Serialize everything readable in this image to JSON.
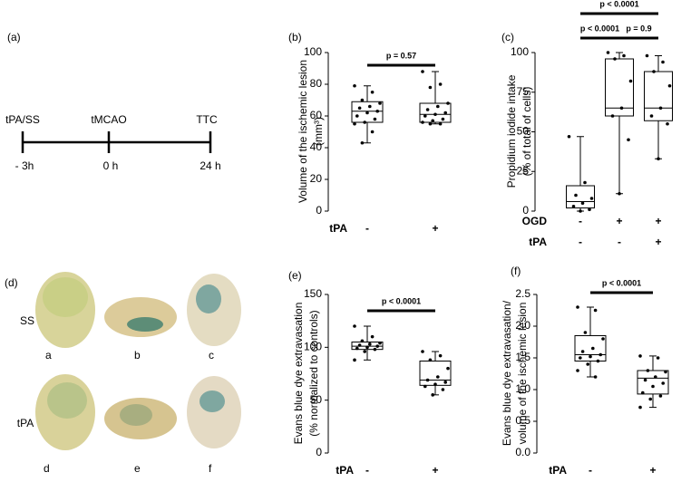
{
  "timeline": {
    "panel": "(a)",
    "events": [
      {
        "top": "tPA/SS",
        "bottom": "- 3h"
      },
      {
        "top": "tMCAO",
        "bottom": "0 h"
      },
      {
        "top": "TTC",
        "bottom": "24 h"
      }
    ]
  },
  "photos": {
    "panel": "(d)",
    "rows": [
      {
        "label": "SS",
        "views": [
          "a",
          "b",
          "c"
        ]
      },
      {
        "label": "tPA",
        "views": [
          "d",
          "e",
          "f"
        ]
      }
    ]
  },
  "chart_data": [
    {
      "type": "box",
      "panel": "(b)",
      "ylabel": [
        "Volume of the ischemic lesion",
        "(mm³)"
      ],
      "ylim": [
        0,
        100
      ],
      "yticks": [
        0,
        20,
        40,
        60,
        80,
        100
      ],
      "factors": [
        {
          "name": "tPA",
          "levels": [
            "-",
            "+"
          ]
        }
      ],
      "comparisons": [
        "p = 0.57"
      ],
      "groups": [
        {
          "min": 43,
          "q1": 56,
          "median": 63,
          "q3": 69,
          "max": 79,
          "points": [
            79,
            75,
            70,
            68,
            66,
            65,
            63,
            62,
            60,
            58,
            56,
            55,
            50,
            43
          ]
        },
        {
          "min": 55,
          "q1": 56,
          "median": 61,
          "q3": 68,
          "max": 88,
          "points": [
            88,
            80,
            78,
            68,
            66,
            64,
            62,
            61,
            60,
            58,
            57,
            56,
            55,
            55
          ]
        }
      ]
    },
    {
      "type": "box",
      "panel": "(c)",
      "ylabel": [
        "Propidium iodide intake",
        "(% of total of cells)"
      ],
      "ylim": [
        0,
        100
      ],
      "yticks": [
        0,
        25,
        50,
        75,
        100
      ],
      "factors": [
        {
          "name": "OGD",
          "levels": [
            "-",
            "+",
            "+"
          ]
        },
        {
          "name": "tPA",
          "levels": [
            "-",
            "-",
            "+"
          ]
        }
      ],
      "comparisons": [
        "p < 0.0001",
        "p = 0.9",
        "p < 0.0001"
      ],
      "groups": [
        {
          "min": 0,
          "q1": 2,
          "median": 6,
          "q3": 16,
          "max": 47,
          "points": [
            47,
            18,
            10,
            8,
            5,
            3,
            1,
            0
          ]
        },
        {
          "min": 11,
          "q1": 60,
          "median": 65,
          "q3": 96,
          "max": 100,
          "points": [
            100,
            98,
            96,
            82,
            65,
            60,
            45,
            11
          ]
        },
        {
          "min": 33,
          "q1": 57,
          "median": 65,
          "q3": 88,
          "max": 98,
          "points": [
            98,
            94,
            88,
            79,
            65,
            60,
            55,
            33
          ]
        }
      ]
    },
    {
      "type": "box",
      "panel": "(e)",
      "ylabel": [
        "Evans blue dye extravasation",
        "(% normalized to controls)"
      ],
      "ylim": [
        0,
        150
      ],
      "yticks": [
        0,
        50,
        100,
        150
      ],
      "factors": [
        {
          "name": "tPA",
          "levels": [
            "-",
            "+"
          ]
        }
      ],
      "comparisons": [
        "p < 0.0001"
      ],
      "groups": [
        {
          "min": 88,
          "q1": 98,
          "median": 101,
          "q3": 105,
          "max": 120,
          "points": [
            120,
            110,
            106,
            104,
            103,
            102,
            101,
            100,
            99,
            98,
            96,
            88
          ]
        },
        {
          "min": 55,
          "q1": 64,
          "median": 69,
          "q3": 87,
          "max": 96,
          "points": [
            96,
            92,
            88,
            80,
            72,
            69,
            67,
            65,
            63,
            60,
            55
          ]
        }
      ]
    },
    {
      "type": "box",
      "panel": "(f)",
      "ylabel": [
        "Evans blue dye extravasation/",
        "volume of the ischemic lesion"
      ],
      "ylim": [
        0,
        2.5
      ],
      "yticks": [
        {
          "value": 0,
          "label": "0.0"
        },
        {
          "value": 0.5,
          "label": "0.5"
        },
        {
          "value": 1,
          "label": "1.0"
        },
        {
          "value": 1.5,
          "label": "1.5"
        },
        {
          "value": 2,
          "label": "2.0"
        },
        {
          "value": 2.5,
          "label": "2.5"
        }
      ],
      "factors": [
        {
          "name": "tPA",
          "levels": [
            "-",
            "+"
          ]
        }
      ],
      "comparisons": [
        "p < 0.0001"
      ],
      "groups": [
        {
          "min": 1.2,
          "q1": 1.45,
          "median": 1.55,
          "q3": 1.85,
          "max": 2.3,
          "points": [
            2.3,
            2.25,
            1.9,
            1.8,
            1.65,
            1.6,
            1.55,
            1.52,
            1.5,
            1.45,
            1.4,
            1.3,
            1.2
          ]
        },
        {
          "min": 0.72,
          "q1": 0.93,
          "median": 1.18,
          "q3": 1.3,
          "max": 1.53,
          "points": [
            1.53,
            1.5,
            1.3,
            1.28,
            1.2,
            1.15,
            1.1,
            1.05,
            0.95,
            0.9,
            0.85,
            0.72
          ]
        }
      ]
    }
  ]
}
